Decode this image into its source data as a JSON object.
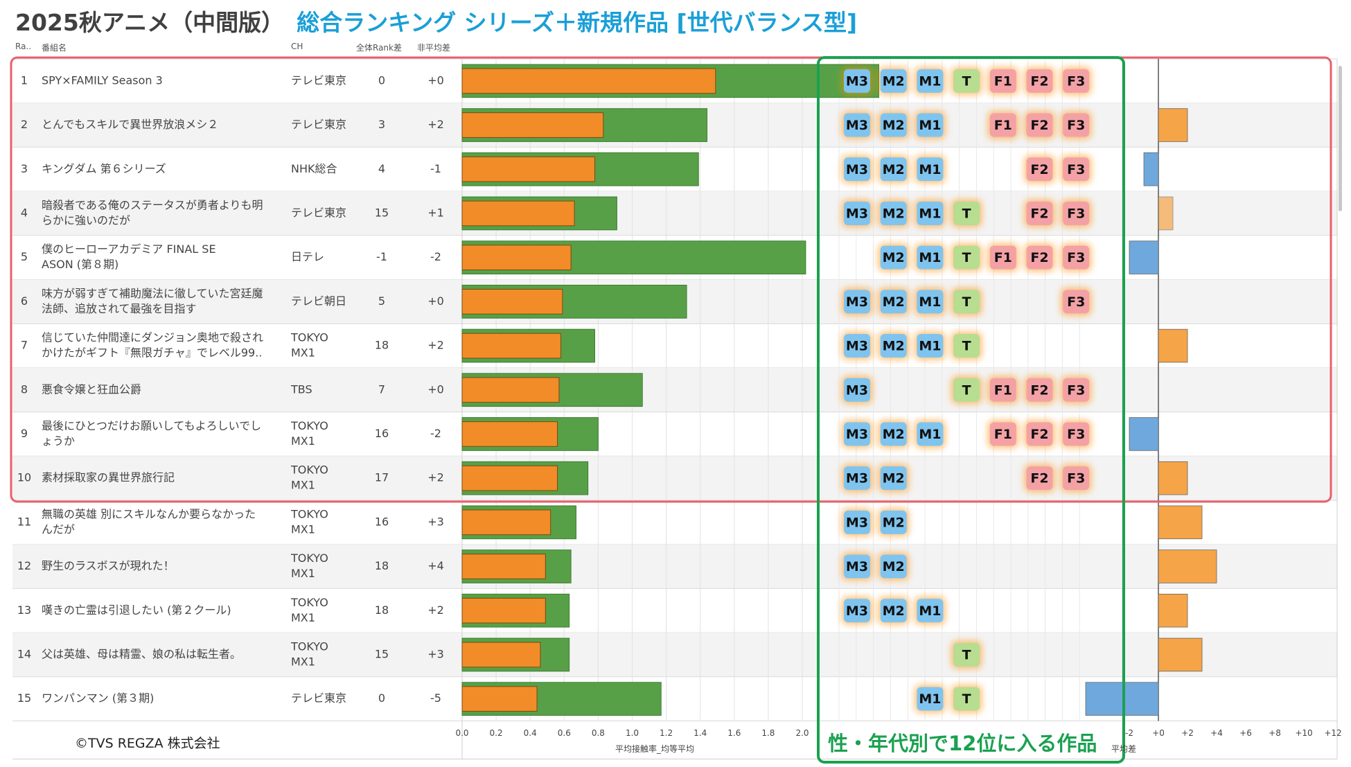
{
  "title": "2025秋アニメ（中間版）",
  "subtitle": "総合ランキング シリーズ＋新規作品 [世代バランス型]",
  "headers": {
    "rank": "Ra..",
    "name": "番組名",
    "ch": "CH",
    "rank_diff": "全体Rank差",
    "bias_diff": "非平均差"
  },
  "copyright": "©TVS REGZA 株式会社",
  "annotation": "性・年代別で12位に入る作品",
  "colors": {
    "green_bar": "#57a047",
    "orange_bar": "#f28c28",
    "blue_diff": "#6fa8dc",
    "orange_diff": "#f5a447",
    "m_badge": "#7fc4ef",
    "t_badge": "#b7dd91",
    "f_badge": "#f4a1a6",
    "top10_box": "#e8606a",
    "green_box": "#1aa150"
  },
  "chart_data": {
    "type": "table",
    "bar_axis": {
      "label": "平均接触率_均等平均",
      "ticks": [
        "0.0",
        "0.2",
        "0.4",
        "0.6",
        "0.8",
        "1.0",
        "1.2",
        "1.4",
        "1.6",
        "1.8",
        "2.0"
      ],
      "range": [
        0,
        2.0
      ]
    },
    "diff_axis": {
      "label": "平均差",
      "ticks": [
        "-2",
        "+0",
        "+2",
        "+4",
        "+6",
        "+8",
        "+10",
        "+12"
      ],
      "range": [
        -2,
        12
      ]
    },
    "segments": [
      "M3",
      "M2",
      "M1",
      "T",
      "F1",
      "F2",
      "F3"
    ],
    "rows": [
      {
        "rank": "1",
        "name": [
          "SPY×FAMILY Season 3"
        ],
        "ch": [
          "テレビ東京"
        ],
        "rank_diff": "0",
        "bias_diff": "+0",
        "green": 2.45,
        "orange": 1.49,
        "diff": 0,
        "badges": [
          "M3",
          "M2",
          "M1",
          "T",
          "F1",
          "F2",
          "F3"
        ]
      },
      {
        "rank": "2",
        "name": [
          "とんでもスキルで異世界放浪メシ２"
        ],
        "ch": [
          "テレビ東京"
        ],
        "rank_diff": "3",
        "bias_diff": "+2",
        "green": 1.44,
        "orange": 0.83,
        "diff": 2,
        "badges": [
          "M3",
          "M2",
          "M1",
          "F1",
          "F2",
          "F3"
        ]
      },
      {
        "rank": "3",
        "name": [
          "キングダム 第６シリーズ"
        ],
        "ch": [
          "NHK総合"
        ],
        "rank_diff": "4",
        "bias_diff": "-1",
        "green": 1.39,
        "orange": 0.78,
        "diff": -1,
        "badges": [
          "M3",
          "M2",
          "M1",
          "F2",
          "F3"
        ]
      },
      {
        "rank": "4",
        "name": [
          "暗殺者である俺のステータスが勇者よりも明",
          "らかに強いのだが"
        ],
        "ch": [
          "テレビ東京"
        ],
        "rank_diff": "15",
        "bias_diff": "+1",
        "green": 0.91,
        "orange": 0.66,
        "diff": 1,
        "badges": [
          "M3",
          "M2",
          "M1",
          "T",
          "F2",
          "F3"
        ]
      },
      {
        "rank": "5",
        "name": [
          "僕のヒーローアカデミア FINAL SE",
          "ASON (第８期)"
        ],
        "ch": [
          "日テレ"
        ],
        "rank_diff": "-1",
        "bias_diff": "-2",
        "green": 2.02,
        "orange": 0.64,
        "diff": -2,
        "badges": [
          "M2",
          "M1",
          "T",
          "F1",
          "F2",
          "F3"
        ]
      },
      {
        "rank": "6",
        "name": [
          "味方が弱すぎて補助魔法に徹していた宮廷魔",
          "法師、追放されて最強を目指す"
        ],
        "ch": [
          "テレビ朝日"
        ],
        "rank_diff": "5",
        "bias_diff": "+0",
        "green": 1.32,
        "orange": 0.59,
        "diff": 0,
        "badges": [
          "M3",
          "M2",
          "M1",
          "T",
          "F3"
        ]
      },
      {
        "rank": "7",
        "name": [
          "信じていた仲間達にダンジョン奥地で殺され",
          "かけたがギフト『無限ガチャ』でレベル99.."
        ],
        "ch": [
          "TOKYO",
          "MX1"
        ],
        "rank_diff": "18",
        "bias_diff": "+2",
        "green": 0.78,
        "orange": 0.58,
        "diff": 2,
        "badges": [
          "M3",
          "M2",
          "M1",
          "T"
        ]
      },
      {
        "rank": "8",
        "name": [
          "悪食令嬢と狂血公爵"
        ],
        "ch": [
          "TBS"
        ],
        "rank_diff": "7",
        "bias_diff": "+0",
        "green": 1.06,
        "orange": 0.57,
        "diff": 0,
        "badges": [
          "M3",
          "T",
          "F1",
          "F2",
          "F3"
        ]
      },
      {
        "rank": "9",
        "name": [
          "最後にひとつだけお願いしてもよろしいでし",
          "ょうか"
        ],
        "ch": [
          "TOKYO",
          "MX1"
        ],
        "rank_diff": "16",
        "bias_diff": "-2",
        "green": 0.8,
        "orange": 0.56,
        "diff": -2,
        "badges": [
          "M3",
          "M2",
          "M1",
          "F1",
          "F2",
          "F3"
        ]
      },
      {
        "rank": "10",
        "name": [
          "素材採取家の異世界旅行記"
        ],
        "ch": [
          "TOKYO",
          "MX1"
        ],
        "rank_diff": "17",
        "bias_diff": "+2",
        "green": 0.74,
        "orange": 0.56,
        "diff": 2,
        "badges": [
          "M3",
          "M2",
          "F2",
          "F3"
        ]
      },
      {
        "rank": "11",
        "name": [
          "無職の英雄 別にスキルなんか要らなかった",
          "んだが"
        ],
        "ch": [
          "TOKYO",
          "MX1"
        ],
        "rank_diff": "16",
        "bias_diff": "+3",
        "green": 0.67,
        "orange": 0.52,
        "diff": 3,
        "badges": [
          "M3",
          "M2"
        ]
      },
      {
        "rank": "12",
        "name": [
          "野生のラスボスが現れた！"
        ],
        "ch": [
          "TOKYO",
          "MX1"
        ],
        "rank_diff": "18",
        "bias_diff": "+4",
        "green": 0.64,
        "orange": 0.49,
        "diff": 4,
        "badges": [
          "M3",
          "M2"
        ]
      },
      {
        "rank": "13",
        "name": [
          "嘆きの亡霊は引退したい (第２クール)"
        ],
        "ch": [
          "TOKYO",
          "MX1"
        ],
        "rank_diff": "18",
        "bias_diff": "+2",
        "green": 0.63,
        "orange": 0.49,
        "diff": 2,
        "badges": [
          "M3",
          "M2",
          "M1"
        ]
      },
      {
        "rank": "14",
        "name": [
          "父は英雄、母は精霊、娘の私は転生者。"
        ],
        "ch": [
          "TOKYO",
          "MX1"
        ],
        "rank_diff": "15",
        "bias_diff": "+3",
        "green": 0.63,
        "orange": 0.46,
        "diff": 3,
        "badges": [
          "T"
        ]
      },
      {
        "rank": "15",
        "name": [
          "ワンパンマン (第３期)"
        ],
        "ch": [
          "テレビ東京"
        ],
        "rank_diff": "0",
        "bias_diff": "-5",
        "green": 1.17,
        "orange": 0.44,
        "diff": -5,
        "badges": [
          "M1",
          "T"
        ]
      }
    ]
  }
}
